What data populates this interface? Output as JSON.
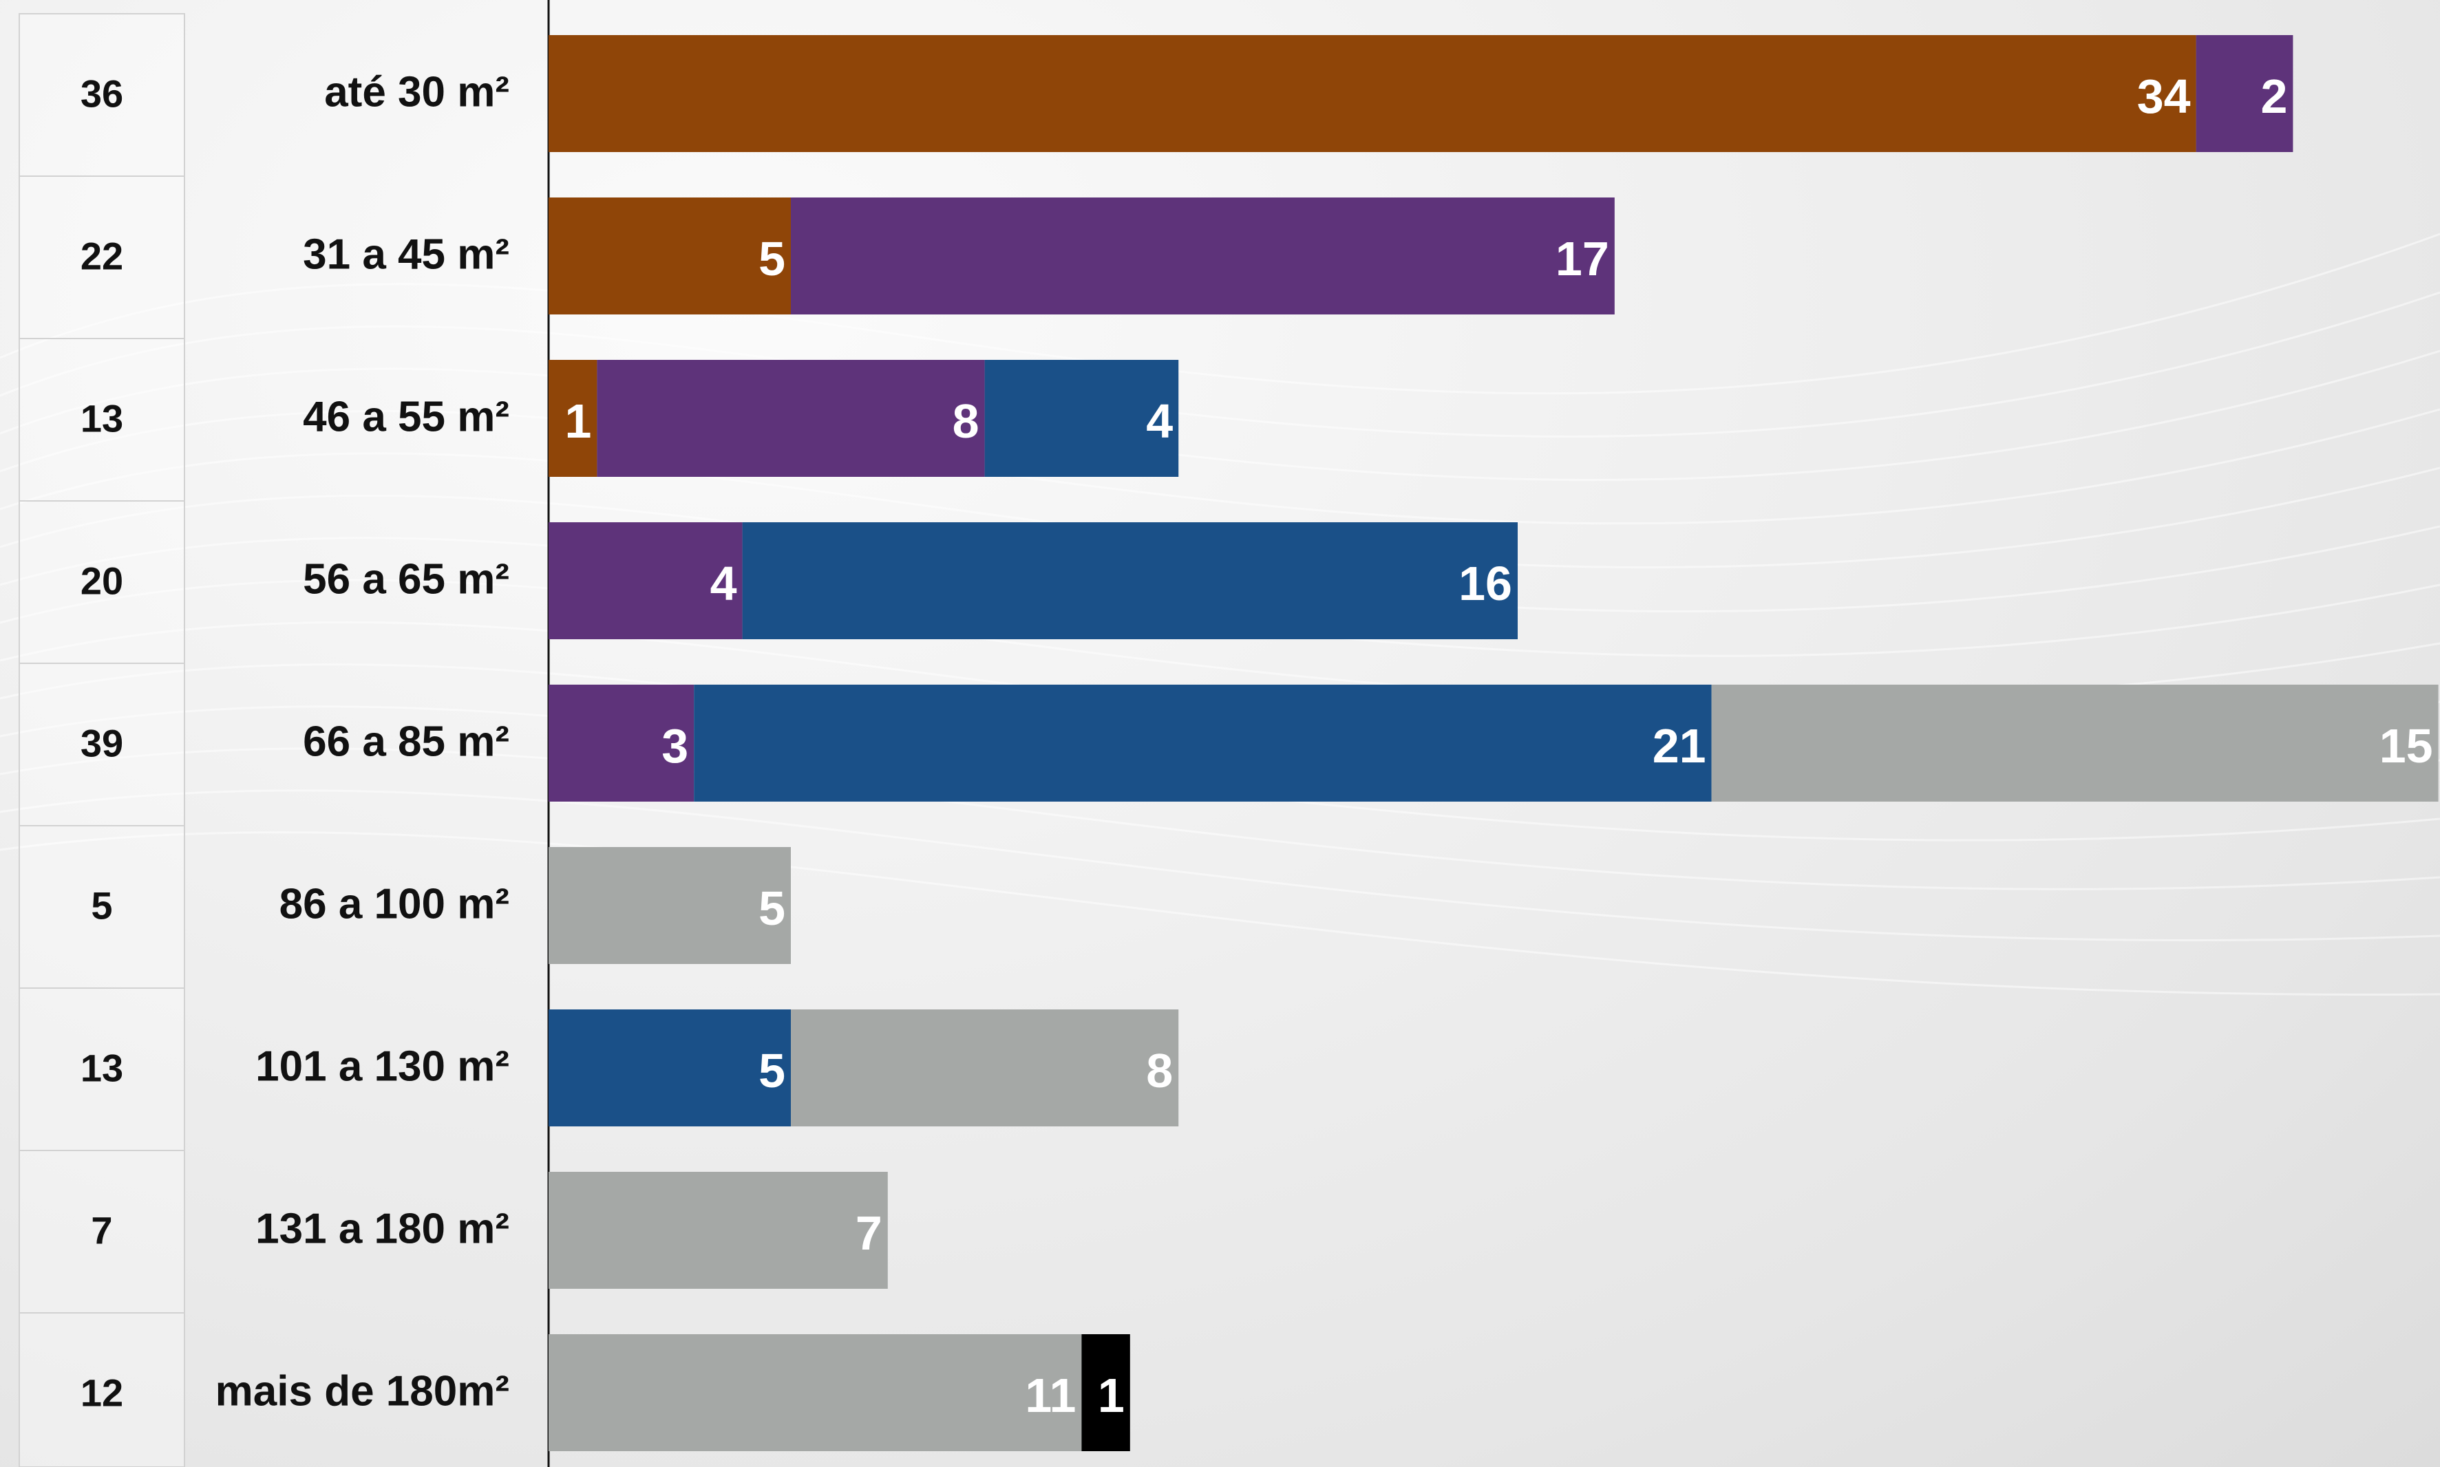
{
  "chart_data": {
    "type": "bar",
    "orientation": "horizontal",
    "stacked": true,
    "categories": [
      "até 30 m²",
      "31 a 45 m²",
      "46 a 55 m²",
      "56 a 65 m²",
      "66 a 85 m²",
      "86 a 100 m²",
      "101 a 130 m²",
      "131 a 180 m²",
      "mais de 180m²"
    ],
    "totals": [
      36,
      22,
      13,
      20,
      39,
      5,
      13,
      7,
      12
    ],
    "series": [
      {
        "color": "#8f4508",
        "values": [
          34,
          5,
          1,
          0,
          0,
          0,
          0,
          0,
          0
        ]
      },
      {
        "color": "#5e337a",
        "values": [
          2,
          17,
          8,
          4,
          3,
          0,
          0,
          0,
          0
        ]
      },
      {
        "color": "#1a5088",
        "values": [
          0,
          0,
          4,
          16,
          21,
          0,
          5,
          0,
          0
        ]
      },
      {
        "color": "#a5a8a6",
        "values": [
          0,
          0,
          0,
          0,
          15,
          5,
          8,
          7,
          11
        ]
      },
      {
        "color": "#000000",
        "values": [
          0,
          0,
          0,
          0,
          0,
          0,
          0,
          0,
          1
        ]
      }
    ],
    "title": "",
    "xlabel": "",
    "ylabel": "",
    "grid": false,
    "legend": "none"
  }
}
